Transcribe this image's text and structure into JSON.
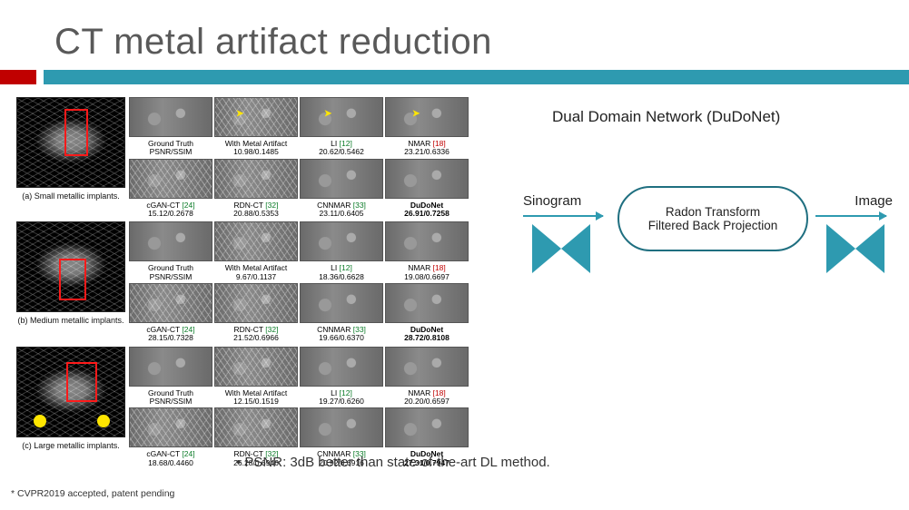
{
  "title": "CT metal artifact reduction",
  "divider": {
    "accent": "#c00000",
    "bar": "#2e9ab0"
  },
  "figure": {
    "rows": [
      {
        "caption": "(a) Small metallic implants.",
        "labels_top": [
          {
            "name": "Ground Truth",
            "metric": "PSNR/SSIM",
            "ref": "",
            "style": "plain"
          },
          {
            "name": "With Metal Artifact",
            "metric": "10.98/0.1485",
            "ref": "",
            "style": "plain"
          },
          {
            "name": "LI",
            "metric": "20.62/0.5462",
            "ref": "[12]",
            "style": "green"
          },
          {
            "name": "NMAR",
            "metric": "23.21/0.6336",
            "ref": "[18]",
            "style": "red"
          }
        ],
        "labels_bot": [
          {
            "name": "cGAN-CT",
            "metric": "15.12/0.2678",
            "ref": "[24]",
            "style": "green"
          },
          {
            "name": "RDN-CT",
            "metric": "20.88/0.5353",
            "ref": "[32]",
            "style": "green"
          },
          {
            "name": "CNNMAR",
            "metric": "23.11/0.6405",
            "ref": "[33]",
            "style": "green"
          },
          {
            "name": "DuDoNet",
            "metric": "26.91/0.7258",
            "ref": "",
            "style": "bold"
          }
        ]
      },
      {
        "caption": "(b) Medium metallic implants.",
        "labels_top": [
          {
            "name": "Ground Truth",
            "metric": "PSNR/SSIM",
            "ref": "",
            "style": "plain"
          },
          {
            "name": "With Metal Artifact",
            "metric": "9.67/0.1137",
            "ref": "",
            "style": "plain"
          },
          {
            "name": "LI",
            "metric": "18.36/0.6628",
            "ref": "[12]",
            "style": "green"
          },
          {
            "name": "NMAR",
            "metric": "19.08/0.6697",
            "ref": "[18]",
            "style": "red"
          }
        ],
        "labels_bot": [
          {
            "name": "cGAN-CT",
            "metric": "28.15/0.7328",
            "ref": "[24]",
            "style": "green"
          },
          {
            "name": "RDN-CT",
            "metric": "21.52/0.6966",
            "ref": "[32]",
            "style": "green"
          },
          {
            "name": "CNNMAR",
            "metric": "19.66/0.6370",
            "ref": "[33]",
            "style": "green"
          },
          {
            "name": "DuDoNet",
            "metric": "28.72/0.8108",
            "ref": "",
            "style": "bold"
          }
        ]
      },
      {
        "caption": "(c) Large metallic implants.",
        "labels_top": [
          {
            "name": "Ground Truth",
            "metric": "PSNR/SSIM",
            "ref": "",
            "style": "plain"
          },
          {
            "name": "With Metal Artifact",
            "metric": "12.15/0.1519",
            "ref": "",
            "style": "plain"
          },
          {
            "name": "LI",
            "metric": "19.27/0.6260",
            "ref": "[12]",
            "style": "green"
          },
          {
            "name": "NMAR",
            "metric": "20.20/0.6597",
            "ref": "[18]",
            "style": "red"
          }
        ],
        "labels_bot": [
          {
            "name": "cGAN-CT",
            "metric": "18.68/0.4460",
            "ref": "[24]",
            "style": "green"
          },
          {
            "name": "RDN-CT",
            "metric": "26.28/0.6946",
            "ref": "[32]",
            "style": "green"
          },
          {
            "name": "CNNMAR",
            "metric": "20.92/0.6916",
            "ref": "[33]",
            "style": "green"
          },
          {
            "name": "DuDoNet",
            "metric": "27.31/0.7947",
            "ref": "",
            "style": "bold"
          }
        ]
      }
    ]
  },
  "diagram": {
    "title": "Dual Domain Network (DuDoNet)",
    "left_label": "Sinogram",
    "right_label": "Image",
    "pill_line1": "Radon Transform",
    "pill_line2": "Filtered Back Projection",
    "bowtie_color": "#2e9ab0"
  },
  "bullet": "PSNR: 3dB better than state-of-the-art DL method.",
  "footnote": "* CVPR2019 accepted, patent pending"
}
